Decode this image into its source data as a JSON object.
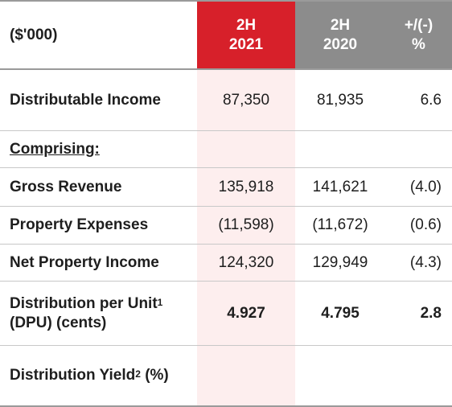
{
  "header": {
    "units": "($'000)",
    "col1_line1": "2H",
    "col1_line2": "2021",
    "col2_line1": "2H",
    "col2_line2": "2020",
    "col3_line1": "+/(-)",
    "col3_line2": "%"
  },
  "colors": {
    "current_period_header": "#d7202a",
    "prior_period_header": "#8c8c8c",
    "highlight_column": "#fdeeee"
  },
  "rows": [
    {
      "label": "Distributable Income",
      "v2021": "87,350",
      "v2020": "81,935",
      "change": "6.6"
    },
    {
      "label": "Comprising:",
      "v2021": "",
      "v2020": "",
      "change": ""
    },
    {
      "label": "Gross Revenue",
      "v2021": "135,918",
      "v2020": "141,621",
      "change": "(4.0)"
    },
    {
      "label": "Property Expenses",
      "v2021": "(11,598)",
      "v2020": "(11,672)",
      "change": "(0.6)"
    },
    {
      "label": "Net Property Income",
      "v2021": "124,320",
      "v2020": "129,949",
      "change": "(4.3)"
    },
    {
      "label_line1": "Distribution per Unit",
      "label_sup": "1",
      "label_line2": "(DPU) (cents)",
      "v2021": "4.927",
      "v2020": "4.795",
      "change": "2.8"
    },
    {
      "label": "Distribution Yield",
      "label_sup": "2",
      "label_suffix": " (%)",
      "v2021": "",
      "v2020": "",
      "change": ""
    }
  ]
}
